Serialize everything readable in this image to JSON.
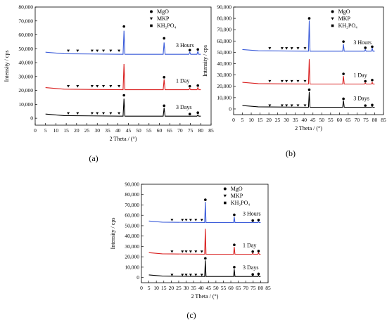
{
  "figure": {
    "panel_labels": [
      "(a)",
      "(b)",
      "(c)"
    ]
  },
  "chart_data": [
    {
      "panel": "(a)",
      "type": "line",
      "xlabel": "2 Theta / (°)",
      "ylabel": "Intensity / cps",
      "xlim": [
        0,
        85
      ],
      "ylim": [
        -5000,
        80000
      ],
      "xticks": [
        0,
        5,
        10,
        15,
        20,
        25,
        30,
        35,
        40,
        45,
        50,
        55,
        60,
        65,
        70,
        75,
        80,
        85
      ],
      "yticks": [
        0,
        10000,
        20000,
        30000,
        40000,
        50000,
        60000,
        70000,
        80000
      ],
      "ytick_labels": [
        "0",
        "10,000",
        "20,000",
        "30,000",
        "40,000",
        "50,000",
        "60,000",
        "70,000",
        "80,000"
      ],
      "legend": {
        "position": "top-right",
        "entries": [
          {
            "marker": "circle",
            "label": "MgO"
          },
          {
            "marker": "triangle-down",
            "label": "MKP"
          },
          {
            "marker": "square",
            "label": "KH₂PO₄"
          }
        ]
      },
      "series": [
        {
          "name": "3 Hours",
          "color": "#3a5bd9",
          "baseline": 46000,
          "peaks": [
            {
              "x": 42.9,
              "y": 63000
            },
            {
              "x": 62.3,
              "y": 54500
            },
            {
              "x": 74.7,
              "y": 47500
            },
            {
              "x": 78.6,
              "y": 48000
            }
          ],
          "markers": [
            {
              "x": 16.0,
              "y": 48500,
              "type": "triangle-down"
            },
            {
              "x": 20.5,
              "y": 48500,
              "type": "triangle-down"
            },
            {
              "x": 27.5,
              "y": 48500,
              "type": "triangle-down"
            },
            {
              "x": 30.0,
              "y": 48500,
              "type": "triangle-down"
            },
            {
              "x": 33.0,
              "y": 48500,
              "type": "triangle-down"
            },
            {
              "x": 36.5,
              "y": 48500,
              "type": "triangle-down"
            },
            {
              "x": 40.5,
              "y": 48500,
              "type": "triangle-down"
            },
            {
              "x": 42.9,
              "y": 66000,
              "type": "circle"
            },
            {
              "x": 62.3,
              "y": 57500,
              "type": "circle"
            },
            {
              "x": 74.7,
              "y": 49000,
              "type": "circle"
            },
            {
              "x": 78.6,
              "y": 49500,
              "type": "circle"
            }
          ]
        },
        {
          "name": "1 Day",
          "color": "#d92020",
          "baseline": 20500,
          "peaks": [
            {
              "x": 42.9,
              "y": 39000
            },
            {
              "x": 62.3,
              "y": 28000
            },
            {
              "x": 74.7,
              "y": 21500
            },
            {
              "x": 78.6,
              "y": 22000
            }
          ],
          "markers": [
            {
              "x": 16.0,
              "y": 23000,
              "type": "triangle-down"
            },
            {
              "x": 20.5,
              "y": 23000,
              "type": "triangle-down"
            },
            {
              "x": 27.5,
              "y": 23000,
              "type": "triangle-down"
            },
            {
              "x": 30.0,
              "y": 23000,
              "type": "triangle-down"
            },
            {
              "x": 33.0,
              "y": 23000,
              "type": "triangle-down"
            },
            {
              "x": 36.5,
              "y": 23000,
              "type": "triangle-down"
            },
            {
              "x": 40.5,
              "y": 23000,
              "type": "triangle-down"
            },
            {
              "x": 62.3,
              "y": 29500,
              "type": "circle"
            },
            {
              "x": 74.7,
              "y": 23000,
              "type": "circle"
            },
            {
              "x": 78.6,
              "y": 23500,
              "type": "circle"
            }
          ]
        },
        {
          "name": "3 Days",
          "color": "#000000",
          "baseline": 1500,
          "peaks": [
            {
              "x": 42.9,
              "y": 14000
            },
            {
              "x": 62.3,
              "y": 7500
            },
            {
              "x": 74.7,
              "y": 1500
            },
            {
              "x": 78.6,
              "y": 2500
            }
          ],
          "markers": [
            {
              "x": 16.0,
              "y": 3500,
              "type": "triangle-down"
            },
            {
              "x": 20.5,
              "y": 3500,
              "type": "triangle-down"
            },
            {
              "x": 27.5,
              "y": 3500,
              "type": "triangle-down"
            },
            {
              "x": 30.0,
              "y": 3500,
              "type": "triangle-down"
            },
            {
              "x": 33.0,
              "y": 3500,
              "type": "triangle-down"
            },
            {
              "x": 36.5,
              "y": 3500,
              "type": "triangle-down"
            },
            {
              "x": 40.5,
              "y": 3500,
              "type": "triangle-down"
            },
            {
              "x": 42.9,
              "y": 16500,
              "type": "circle"
            },
            {
              "x": 62.3,
              "y": 9000,
              "type": "circle"
            },
            {
              "x": 74.7,
              "y": 3000,
              "type": "circle"
            },
            {
              "x": 78.6,
              "y": 4000,
              "type": "circle"
            }
          ]
        }
      ]
    },
    {
      "panel": "(b)",
      "type": "line",
      "xlabel": "2 Theta / (°)",
      "ylabel": "Intensity / cps",
      "xlim": [
        0,
        85
      ],
      "ylim": [
        -5000,
        90000
      ],
      "xticks": [
        0,
        5,
        10,
        15,
        20,
        25,
        30,
        35,
        40,
        45,
        50,
        55,
        60,
        65,
        70,
        75,
        80,
        85
      ],
      "yticks": [
        0,
        10000,
        20000,
        30000,
        40000,
        50000,
        60000,
        70000,
        80000,
        90000
      ],
      "ytick_labels": [
        "0",
        "10,000",
        "20,000",
        "30,000",
        "40,000",
        "50,000",
        "60,000",
        "70,000",
        "80,000",
        "90,000"
      ],
      "legend": {
        "position": "top-right",
        "entries": [
          {
            "marker": "circle",
            "label": "MgO"
          },
          {
            "marker": "triangle-down",
            "label": "MKP"
          },
          {
            "marker": "square",
            "label": "KH₂PO₄"
          }
        ]
      },
      "series": [
        {
          "name": "3 Hours",
          "color": "#3a5bd9",
          "baseline": 51000,
          "peaks": [
            {
              "x": 42.9,
              "y": 78000
            },
            {
              "x": 62.3,
              "y": 57000
            },
            {
              "x": 74.7,
              "y": 52500
            },
            {
              "x": 78.6,
              "y": 53500
            }
          ],
          "markers": [
            {
              "x": 20.5,
              "y": 53500,
              "type": "triangle-down"
            },
            {
              "x": 27.5,
              "y": 53500,
              "type": "triangle-down"
            },
            {
              "x": 30.0,
              "y": 53500,
              "type": "triangle-down"
            },
            {
              "x": 33.0,
              "y": 53500,
              "type": "triangle-down"
            },
            {
              "x": 36.5,
              "y": 53500,
              "type": "triangle-down"
            },
            {
              "x": 40.5,
              "y": 53500,
              "type": "triangle-down"
            },
            {
              "x": 42.9,
              "y": 80000,
              "type": "circle"
            },
            {
              "x": 62.3,
              "y": 59500,
              "type": "circle"
            },
            {
              "x": 74.7,
              "y": 54000,
              "type": "circle"
            },
            {
              "x": 78.6,
              "y": 55000,
              "type": "circle"
            }
          ]
        },
        {
          "name": "1 Day",
          "color": "#d92020",
          "baseline": 22000,
          "peaks": [
            {
              "x": 42.9,
              "y": 44000
            },
            {
              "x": 62.3,
              "y": 29000
            },
            {
              "x": 74.7,
              "y": 23000
            },
            {
              "x": 78.6,
              "y": 23500
            }
          ],
          "markers": [
            {
              "x": 20.5,
              "y": 24500,
              "type": "triangle-down"
            },
            {
              "x": 27.5,
              "y": 24500,
              "type": "triangle-down"
            },
            {
              "x": 30.0,
              "y": 24500,
              "type": "triangle-down"
            },
            {
              "x": 33.0,
              "y": 24500,
              "type": "triangle-down"
            },
            {
              "x": 36.5,
              "y": 24500,
              "type": "triangle-down"
            },
            {
              "x": 40.5,
              "y": 24500,
              "type": "triangle-down"
            },
            {
              "x": 62.3,
              "y": 31000,
              "type": "circle"
            },
            {
              "x": 74.7,
              "y": 24500,
              "type": "circle"
            },
            {
              "x": 78.6,
              "y": 25500,
              "type": "circle"
            }
          ]
        },
        {
          "name": "3 Days",
          "color": "#000000",
          "baseline": 1500,
          "peaks": [
            {
              "x": 42.9,
              "y": 15000
            },
            {
              "x": 62.3,
              "y": 7500
            },
            {
              "x": 74.7,
              "y": 1500
            },
            {
              "x": 78.6,
              "y": 2000
            }
          ],
          "markers": [
            {
              "x": 20.5,
              "y": 3000,
              "type": "triangle-down"
            },
            {
              "x": 27.5,
              "y": 3000,
              "type": "triangle-down"
            },
            {
              "x": 30.0,
              "y": 3000,
              "type": "triangle-down"
            },
            {
              "x": 33.0,
              "y": 3000,
              "type": "triangle-down"
            },
            {
              "x": 36.5,
              "y": 3000,
              "type": "triangle-down"
            },
            {
              "x": 40.5,
              "y": 3000,
              "type": "triangle-down"
            },
            {
              "x": 42.9,
              "y": 17000,
              "type": "circle"
            },
            {
              "x": 62.3,
              "y": 9000,
              "type": "circle"
            },
            {
              "x": 74.7,
              "y": 3000,
              "type": "circle"
            },
            {
              "x": 78.6,
              "y": 3500,
              "type": "circle"
            }
          ]
        }
      ]
    },
    {
      "panel": "(c)",
      "type": "line",
      "xlabel": "2 Theta / (°)",
      "ylabel": "Intensity / cps",
      "xlim": [
        0,
        85
      ],
      "ylim": [
        -5000,
        90000
      ],
      "xticks": [
        0,
        5,
        10,
        15,
        20,
        25,
        30,
        35,
        40,
        45,
        50,
        55,
        60,
        65,
        70,
        75,
        80,
        85
      ],
      "yticks": [
        0,
        10000,
        20000,
        30000,
        40000,
        50000,
        60000,
        70000,
        80000,
        90000
      ],
      "ytick_labels": [
        "0",
        "10,000",
        "20,000",
        "30,000",
        "40,000",
        "50,000",
        "60,000",
        "70,000",
        "80,000",
        "90,000"
      ],
      "legend": {
        "position": "top-right",
        "entries": [
          {
            "marker": "circle",
            "label": "MgO"
          },
          {
            "marker": "triangle-down",
            "label": "MKP"
          },
          {
            "marker": "square",
            "label": "KH₂PO₄"
          }
        ]
      },
      "series": [
        {
          "name": "3 Hours",
          "color": "#3a5bd9",
          "baseline": 53000,
          "peaks": [
            {
              "x": 42.9,
              "y": 73000
            },
            {
              "x": 62.3,
              "y": 58500
            },
            {
              "x": 74.7,
              "y": 53500
            },
            {
              "x": 78.6,
              "y": 54000
            }
          ],
          "markers": [
            {
              "x": 20.5,
              "y": 55500,
              "type": "triangle-down"
            },
            {
              "x": 27.5,
              "y": 55500,
              "type": "triangle-down"
            },
            {
              "x": 30.0,
              "y": 55500,
              "type": "triangle-down"
            },
            {
              "x": 33.0,
              "y": 55500,
              "type": "triangle-down"
            },
            {
              "x": 36.5,
              "y": 55500,
              "type": "triangle-down"
            },
            {
              "x": 40.5,
              "y": 55500,
              "type": "triangle-down"
            },
            {
              "x": 42.9,
              "y": 75000,
              "type": "circle"
            },
            {
              "x": 62.3,
              "y": 60500,
              "type": "circle"
            },
            {
              "x": 74.7,
              "y": 55000,
              "type": "circle"
            },
            {
              "x": 78.6,
              "y": 55500,
              "type": "circle"
            }
          ]
        },
        {
          "name": "1 Day",
          "color": "#d92020",
          "baseline": 22500,
          "peaks": [
            {
              "x": 42.9,
              "y": 47000
            },
            {
              "x": 62.3,
              "y": 29500
            },
            {
              "x": 74.7,
              "y": 23500
            },
            {
              "x": 78.6,
              "y": 24000
            }
          ],
          "markers": [
            {
              "x": 20.5,
              "y": 25000,
              "type": "triangle-down"
            },
            {
              "x": 27.5,
              "y": 25000,
              "type": "triangle-down"
            },
            {
              "x": 30.0,
              "y": 25000,
              "type": "triangle-down"
            },
            {
              "x": 33.0,
              "y": 25000,
              "type": "triangle-down"
            },
            {
              "x": 36.5,
              "y": 25000,
              "type": "triangle-down"
            },
            {
              "x": 40.5,
              "y": 25000,
              "type": "triangle-down"
            },
            {
              "x": 62.3,
              "y": 31500,
              "type": "circle"
            },
            {
              "x": 74.7,
              "y": 25000,
              "type": "circle"
            },
            {
              "x": 78.6,
              "y": 25500,
              "type": "circle"
            }
          ]
        },
        {
          "name": "3 Days",
          "color": "#000000",
          "baseline": 1000,
          "peaks": [
            {
              "x": 42.9,
              "y": 16500
            },
            {
              "x": 62.3,
              "y": 8000
            },
            {
              "x": 74.7,
              "y": 1500
            },
            {
              "x": 78.6,
              "y": 2000
            }
          ],
          "markers": [
            {
              "x": 20.5,
              "y": 2500,
              "type": "triangle-down"
            },
            {
              "x": 27.5,
              "y": 2500,
              "type": "triangle-down"
            },
            {
              "x": 30.0,
              "y": 2500,
              "type": "triangle-down"
            },
            {
              "x": 33.0,
              "y": 2500,
              "type": "triangle-down"
            },
            {
              "x": 36.5,
              "y": 2500,
              "type": "triangle-down"
            },
            {
              "x": 40.5,
              "y": 2500,
              "type": "triangle-down"
            },
            {
              "x": 42.9,
              "y": 18500,
              "type": "circle"
            },
            {
              "x": 62.3,
              "y": 10000,
              "type": "circle"
            },
            {
              "x": 74.7,
              "y": 3000,
              "type": "circle"
            },
            {
              "x": 78.6,
              "y": 3500,
              "type": "circle"
            }
          ]
        }
      ]
    }
  ]
}
